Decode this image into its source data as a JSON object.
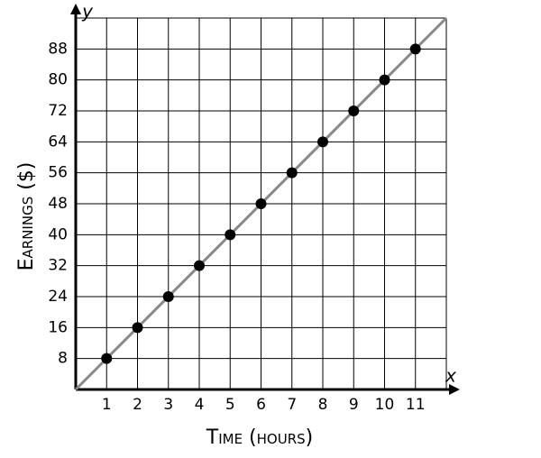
{
  "chart_data": {
    "type": "scatter",
    "x_label": "Time (hours)",
    "y_label": "Earnings ($)",
    "x_axis_letter": "x",
    "y_axis_letter": "y",
    "series": [
      {
        "type": "scatter",
        "color": "#000000",
        "x": [
          1,
          2,
          3,
          4,
          5,
          6,
          7,
          8,
          9,
          10,
          11
        ],
        "values": [
          8,
          16,
          24,
          32,
          40,
          48,
          56,
          64,
          72,
          80,
          88
        ]
      },
      {
        "type": "line",
        "color": "#888888",
        "x": [
          0,
          12
        ],
        "values": [
          0,
          96
        ]
      }
    ],
    "xlim": [
      0,
      12
    ],
    "ylim": [
      0,
      96
    ],
    "xticks": [
      1,
      2,
      3,
      4,
      5,
      6,
      7,
      8,
      9,
      10,
      11
    ],
    "yticks": [
      8,
      16,
      24,
      32,
      40,
      48,
      56,
      64,
      72,
      80,
      88
    ],
    "grid": true
  }
}
